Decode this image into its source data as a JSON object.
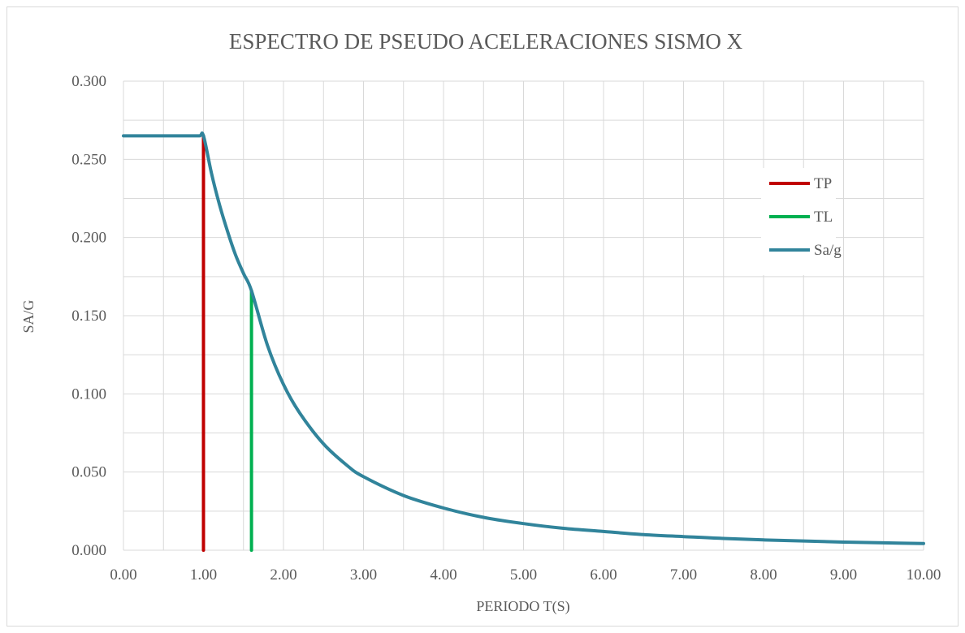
{
  "chart_data": {
    "type": "line",
    "title": "ESPECTRO DE PSEUDO ACELERACIONES SISMO X",
    "xlabel": "PERIODO T(S)",
    "ylabel": "SA/G",
    "xlim": [
      0,
      10
    ],
    "ylim": [
      0,
      0.3
    ],
    "x_ticks": [
      "0.00",
      "1.00",
      "2.00",
      "3.00",
      "4.00",
      "5.00",
      "6.00",
      "7.00",
      "8.00",
      "9.00",
      "10.00"
    ],
    "y_ticks": [
      "0.000",
      "0.050",
      "0.100",
      "0.150",
      "0.200",
      "0.250",
      "0.300"
    ],
    "grid": true,
    "legend_position": "right",
    "series": [
      {
        "name": "TP",
        "color": "#c00000",
        "x": [
          1.0,
          1.0
        ],
        "y": [
          0,
          0.265
        ]
      },
      {
        "name": "TL",
        "color": "#00b050",
        "x": [
          1.6,
          1.6
        ],
        "y": [
          0,
          0.166
        ]
      },
      {
        "name": "Sa/g",
        "color": "#31849b",
        "x": [
          0,
          0.2,
          0.4,
          0.6,
          0.8,
          0.95,
          1.0,
          1.1,
          1.2,
          1.3,
          1.4,
          1.5,
          1.6,
          1.8,
          2.0,
          2.2,
          2.5,
          2.8,
          3.0,
          3.5,
          4.0,
          4.5,
          5.0,
          5.5,
          6.0,
          6.5,
          7.0,
          7.5,
          8.0,
          8.5,
          9.0,
          9.5,
          10.0
        ],
        "y": [
          0.265,
          0.265,
          0.265,
          0.265,
          0.265,
          0.265,
          0.265,
          0.241,
          0.221,
          0.204,
          0.189,
          0.177,
          0.166,
          0.131,
          0.106,
          0.088,
          0.068,
          0.054,
          0.047,
          0.035,
          0.027,
          0.021,
          0.017,
          0.014,
          0.012,
          0.01,
          0.0087,
          0.0075,
          0.0066,
          0.0059,
          0.0052,
          0.0047,
          0.0043
        ]
      }
    ]
  }
}
